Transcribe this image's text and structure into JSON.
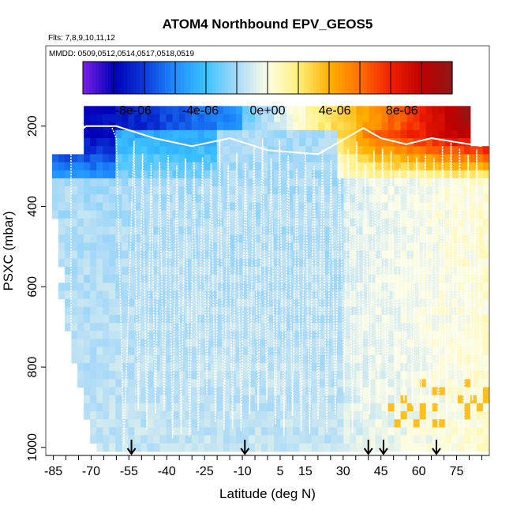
{
  "chart_data": {
    "type": "heatmap",
    "title": "ATOM4 Northbound EPV_GEOS5",
    "flights_note": "Flts: 7,8,9,10,11,12",
    "dates_note": "MMDD: 0509,0512,0514,0517,0518,0519",
    "xlabel": "Latitude (deg N)",
    "ylabel": "PSXC (mbar)",
    "xlim": [
      -88,
      88
    ],
    "ylim": [
      1020,
      0
    ],
    "x_ticks": [
      -85,
      -70,
      -55,
      -40,
      -25,
      -10,
      5,
      15,
      30,
      45,
      60,
      75
    ],
    "y_ticks": [
      200,
      400,
      600,
      800,
      1000
    ],
    "colorbar": {
      "min": -1.1e-05,
      "max": 1.1e-05,
      "ticks": [
        {
          "value": -8e-06,
          "label": "-8e-06"
        },
        {
          "value": -4e-06,
          "label": "-4e-06"
        },
        {
          "value": 0,
          "label": "0e+00"
        },
        {
          "value": 4e-06,
          "label": "4e-06"
        },
        {
          "value": 8e-06,
          "label": "8e-06"
        }
      ],
      "colors": [
        "#7a1fe8",
        "#0000b8",
        "#0b3ad8",
        "#1f8dff",
        "#3cc2ff",
        "#a9d9f8",
        "#fdfde4",
        "#fff07a",
        "#ffb000",
        "#ff7000",
        "#f22000",
        "#c00000",
        "#8e1818"
      ]
    },
    "marker_latitudes": [
      -54,
      -9,
      40,
      46,
      67
    ],
    "approx_field_description_rows": [
      {
        "p": 200,
        "value": -5e-06
      },
      {
        "p": 300,
        "value": -3e-06
      },
      {
        "p": 500,
        "value": -1.5e-06
      },
      {
        "p": 800,
        "value": -1e-06
      },
      {
        "p": 1000,
        "value": -6e-07
      }
    ]
  }
}
